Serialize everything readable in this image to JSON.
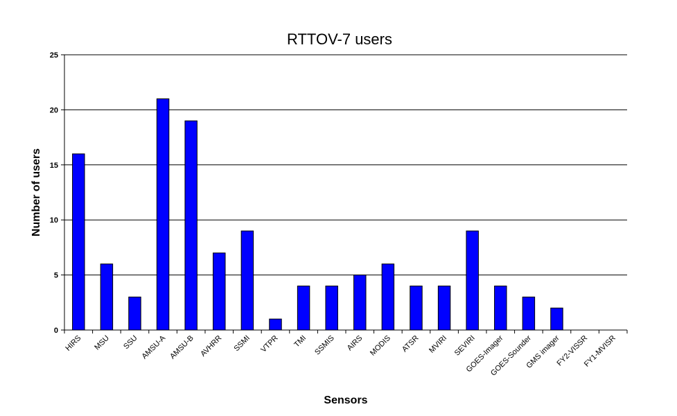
{
  "chart_data": {
    "type": "bar",
    "title": "RTTOV-7 users",
    "xlabel": "Sensors",
    "ylabel": "Number of users",
    "ylim": [
      0,
      25
    ],
    "yticks": [
      0,
      5,
      10,
      15,
      20,
      25
    ],
    "grid": true,
    "categories": [
      "HIRS",
      "MSU",
      "SSU",
      "AMSU-A",
      "AMSU-B",
      "AVHRR",
      "SSMI",
      "VTPR",
      "TMI",
      "SSMIS",
      "AIRS",
      "MODIS",
      "ATSR",
      "MVIRI",
      "SEVIRI",
      "GOES-Imager",
      "GOES-Sounder",
      "GMS imager",
      "FY2-VISSR",
      "FY1-MVISR"
    ],
    "values": [
      16,
      6,
      3,
      21,
      19,
      7,
      9,
      1,
      4,
      4,
      5,
      6,
      4,
      4,
      9,
      4,
      3,
      2,
      0,
      0
    ],
    "bar_color": "#0000ff"
  }
}
